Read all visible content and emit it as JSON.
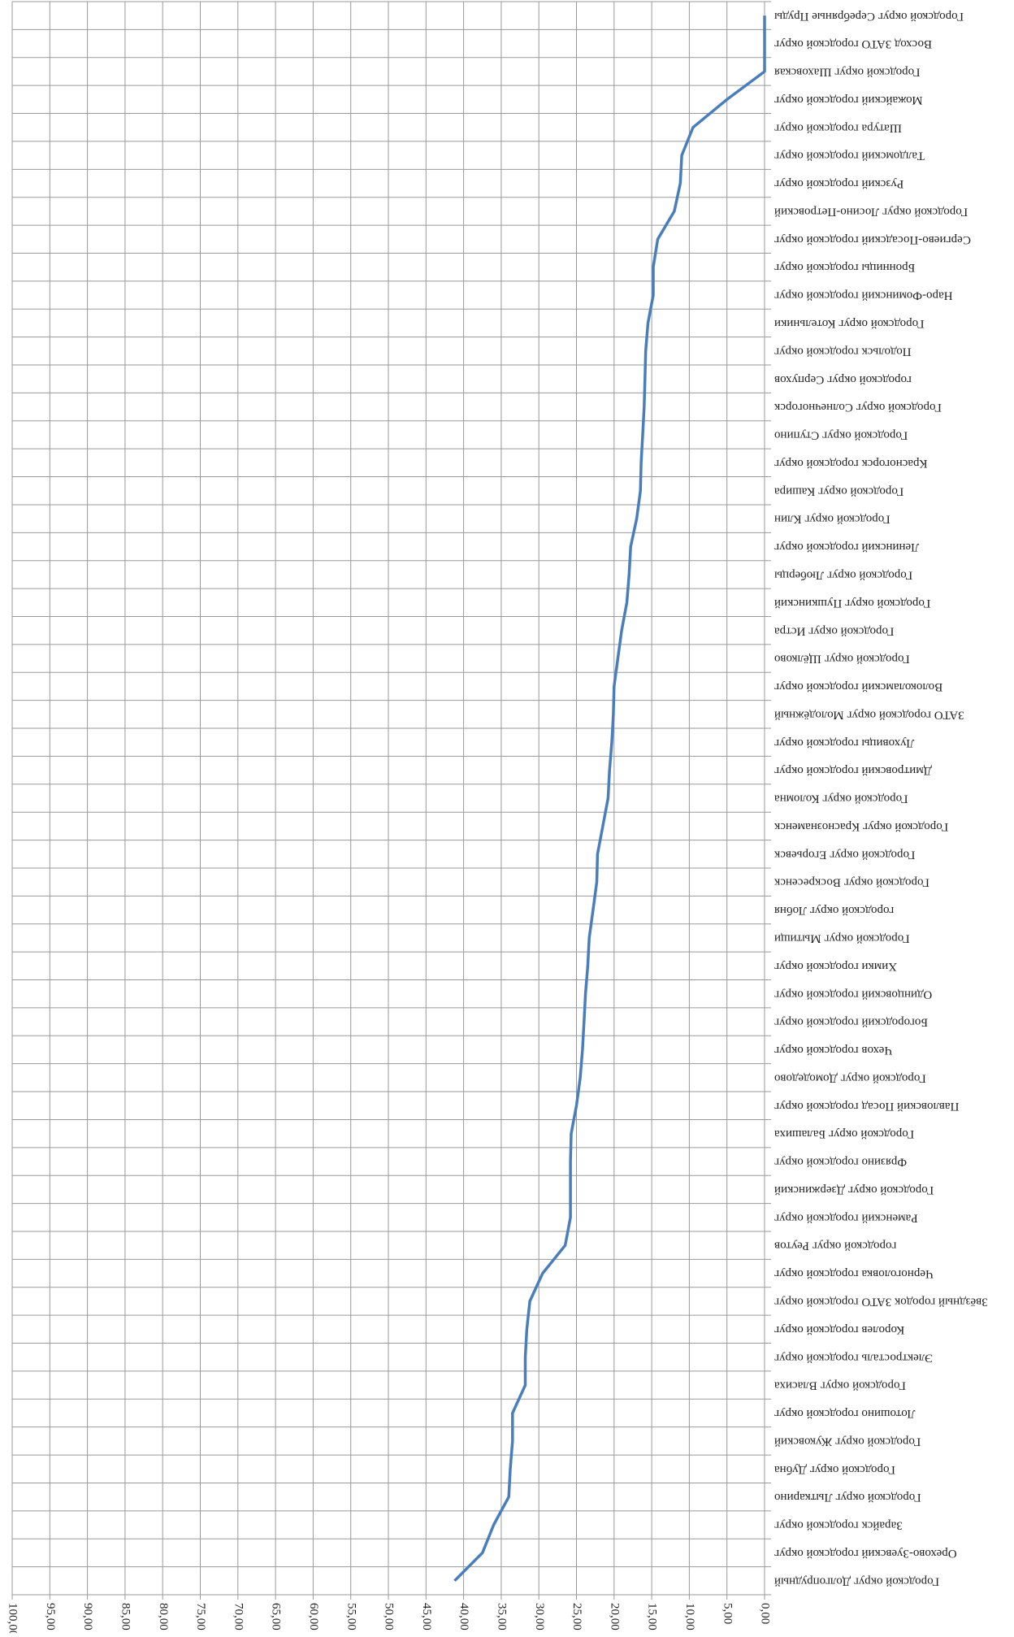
{
  "chart_data": {
    "type": "line",
    "rotated": true,
    "color": "#4a7ebb",
    "grid": true,
    "categories": [
      "Городской округ Долгопрудный",
      "Орехово-Зуевский городской округ",
      "Зарайск городской округ",
      "Городской округ Лыткарино",
      "Городской округ Дубна",
      "Городской округ Жуковский",
      "Лотошино городской округ",
      "Городской округ Власиха",
      "Электросталь городской округ",
      "Королев городской округ",
      "Звёздный городок ЗАТО городской округ",
      "Черноголовка городской округ",
      "городской округ Реутов",
      "Раменский городской округ",
      "Городской округ Дзержинский",
      "Фрязино городской округ",
      "Городской округ Балашиха",
      "Павловский Посад городской округ",
      "Городской округ Домодедово",
      "Чехов городской округ",
      "Богородский городской округ",
      "Одинцовский городской округ",
      "Химки городской округ",
      "Городской округ Мытищи",
      "городской округ Лобня",
      "Городской округ Воскресенск",
      "Городской округ Егорьевск",
      "Городской округ Краснознаменск",
      "Городской округ Коломна",
      "Дмитровский городской округ",
      "Луховицы городской округ",
      "ЗАТО городской округ Молодёжный",
      "Волоколамский городской округ",
      "Городской округ Щёлково",
      "Городской округ Истра",
      "Городской округ Пушкинский",
      "Городской округ Люберцы",
      "Ленинский городской округ",
      "Городской округ Клин",
      "Городской округ Кашира",
      "Красногорск городской округ",
      "Городской округ Ступино",
      "Городской округ Солнечногорск",
      "городской округ Серпухов",
      "Подольск городской округ",
      "Городской округ Котельники",
      "Наро-Фоминский городской округ",
      "Бронницы городской округ",
      "Сергиево-Посадский городской округ",
      "Городской округ Лосино-Петровский",
      "Рузский городской округ",
      "Талдомский городской округ",
      "Шатура городской округ",
      "Можайский городской округ",
      "Городской округ Шаховская",
      "Восход ЗАТО городской округ",
      "Городской округ Серебряные Пруды"
    ],
    "values": [
      41.2,
      37.5,
      36,
      34,
      33.8,
      33.5,
      33.5,
      31.8,
      31.8,
      31.6,
      31.2,
      29.5,
      26.5,
      25.8,
      25.8,
      25.8,
      25.7,
      25,
      24.5,
      24.2,
      24,
      23.8,
      23.5,
      23.3,
      22.8,
      22.3,
      22.2,
      21.5,
      20.8,
      20.6,
      20.3,
      20.1,
      20,
      19.5,
      19,
      18.3,
      18,
      17.8,
      17,
      16.5,
      16.4,
      16.2,
      16,
      15.9,
      15.8,
      15.5,
      14.8,
      14.8,
      14.2,
      12,
      11.2,
      11,
      9.5,
      5,
      0,
      0,
      0
    ],
    "ylim": [
      0,
      100
    ],
    "yticks": [
      {
        "value": 0,
        "label": "0,00"
      },
      {
        "value": 5,
        "label": "5,00"
      },
      {
        "value": 10,
        "label": "10,00"
      },
      {
        "value": 15,
        "label": "15,00"
      },
      {
        "value": 20,
        "label": "20,00"
      },
      {
        "value": 25,
        "label": "25,00"
      },
      {
        "value": 30,
        "label": "30,00"
      },
      {
        "value": 35,
        "label": "35,00"
      },
      {
        "value": 40,
        "label": "40,00"
      },
      {
        "value": 45,
        "label": "45,00"
      },
      {
        "value": 50,
        "label": "50,00"
      },
      {
        "value": 55,
        "label": "55,00"
      },
      {
        "value": 60,
        "label": "60,00"
      },
      {
        "value": 65,
        "label": "65,00"
      },
      {
        "value": 70,
        "label": "70,00"
      },
      {
        "value": 75,
        "label": "75,00"
      },
      {
        "value": 80,
        "label": "80,00"
      },
      {
        "value": 85,
        "label": "85,00"
      },
      {
        "value": 90,
        "label": "90,00"
      },
      {
        "value": 95,
        "label": "95,00"
      },
      {
        "value": 100,
        "label": "100,00"
      }
    ]
  }
}
